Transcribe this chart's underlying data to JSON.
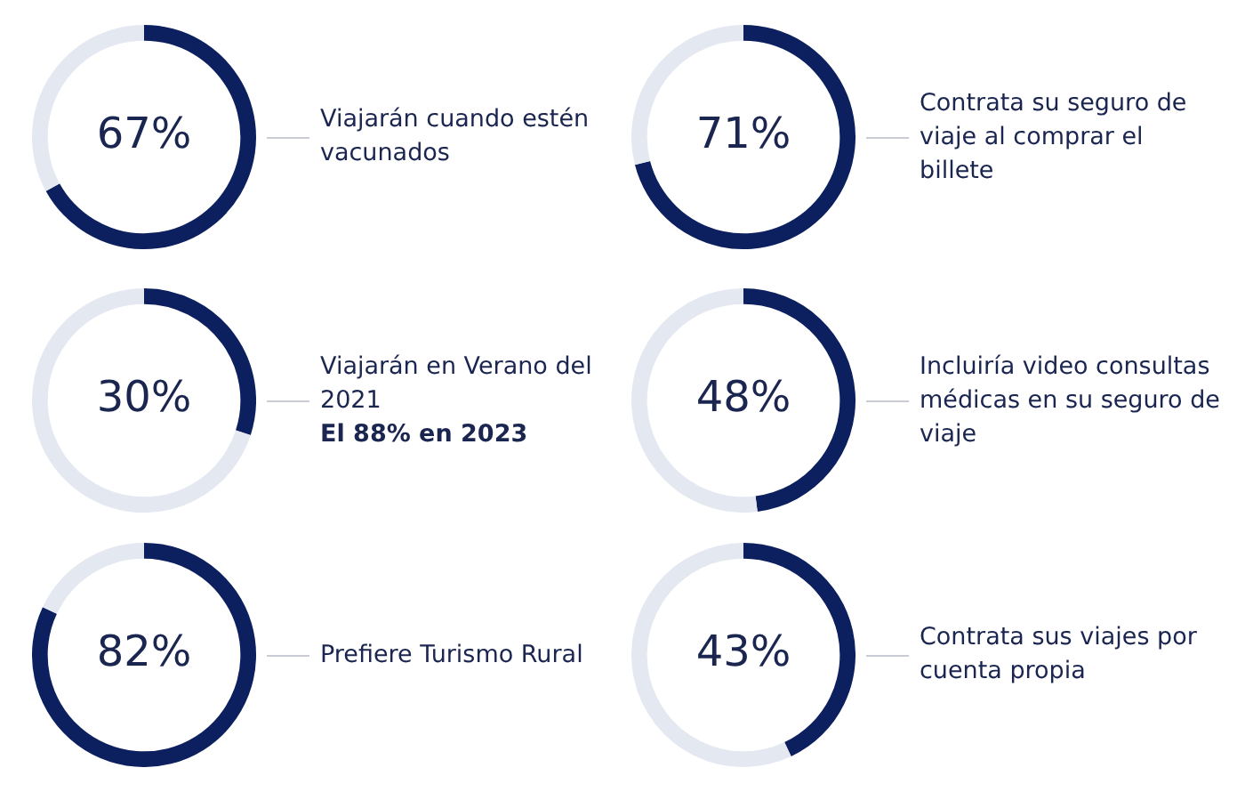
{
  "chart_data": [
    {
      "type": "donut",
      "title": "Viajarán cuando estén vacunados",
      "categories": [
        null,
        null
      ],
      "values": [
        67,
        33
      ],
      "colors": [
        "#0c1f5e",
        "#e4e8f1"
      ],
      "value_labels": [
        "67%",
        null
      ]
    },
    {
      "type": "donut",
      "title": "Contrata su seguro de viaje al comprar el billete",
      "categories": [
        null,
        null
      ],
      "values": [
        71,
        29
      ],
      "colors": [
        "#0c1f5e",
        "#e4e8f1"
      ],
      "value_labels": [
        "71%",
        null
      ]
    },
    {
      "type": "donut",
      "title": "Viajarán en Verano del 2021",
      "subtitle": "El 88% en 2023",
      "categories": [
        null,
        null
      ],
      "values": [
        30,
        70
      ],
      "colors": [
        "#0c1f5e",
        "#e4e8f1"
      ],
      "value_labels": [
        "30%",
        null
      ]
    },
    {
      "type": "donut",
      "title": "Incluiría video consultas médicas  en su seguro de viaje",
      "categories": [
        null,
        null
      ],
      "values": [
        48,
        52
      ],
      "colors": [
        "#0c1f5e",
        "#e4e8f1"
      ],
      "value_labels": [
        "48%",
        null
      ]
    },
    {
      "type": "donut",
      "title": "Prefiere Turismo Rural",
      "categories": [
        null,
        null
      ],
      "values": [
        82,
        18
      ],
      "colors": [
        "#0c1f5e",
        "#e4e8f1"
      ],
      "value_labels": [
        "82%",
        null
      ]
    },
    {
      "type": "donut",
      "title": "Contrata sus viajes por cuenta propia",
      "categories": [
        null,
        null
      ],
      "values": [
        43,
        57
      ],
      "colors": [
        "#0c1f5e",
        "#e4e8f1"
      ],
      "value_labels": [
        "43%",
        null
      ]
    }
  ]
}
